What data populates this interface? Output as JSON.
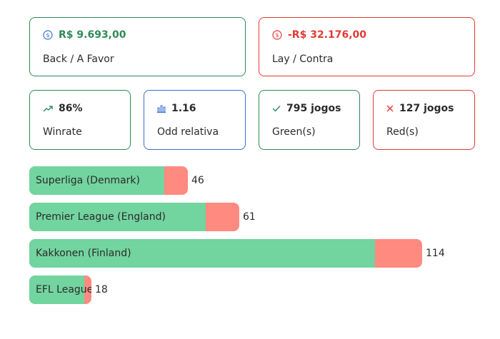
{
  "summary": {
    "back": {
      "value": "R$ 9.693,00",
      "label": "Back / A Favor",
      "color": "#2e8b57"
    },
    "lay": {
      "value": "-R$ 32.176,00",
      "label": "Lay / Contra",
      "color": "#e53935"
    }
  },
  "stats": {
    "winrate": {
      "value": "86%",
      "label": "Winrate",
      "icon": "trending-up-icon"
    },
    "odd": {
      "value": "1.16",
      "label": "Odd relativa",
      "icon": "bar-chart-icon"
    },
    "green": {
      "value": "795 jogos",
      "label": "Green(s)",
      "icon": "check-icon"
    },
    "red": {
      "value": "127 jogos",
      "label": "Red(s)",
      "icon": "x-icon"
    }
  },
  "leagues": [
    {
      "name": "Superliga (Denmark)",
      "count": "46",
      "total": 46,
      "green_fraction": 0.85
    },
    {
      "name": "Premier League (England)",
      "count": "61",
      "total": 61,
      "green_fraction": 0.84
    },
    {
      "name": "Kakkonen (Finland)",
      "count": "114",
      "total": 114,
      "green_fraction": 0.88
    },
    {
      "name": "EFL League",
      "count": "18",
      "total": 18,
      "green_fraction": 0.88
    }
  ],
  "colors": {
    "green_border": "#2e8b57",
    "red_border": "#e53935",
    "blue_border": "#3b6fd4",
    "bar_green": "#72d49f",
    "bar_red": "#ff8a80"
  }
}
